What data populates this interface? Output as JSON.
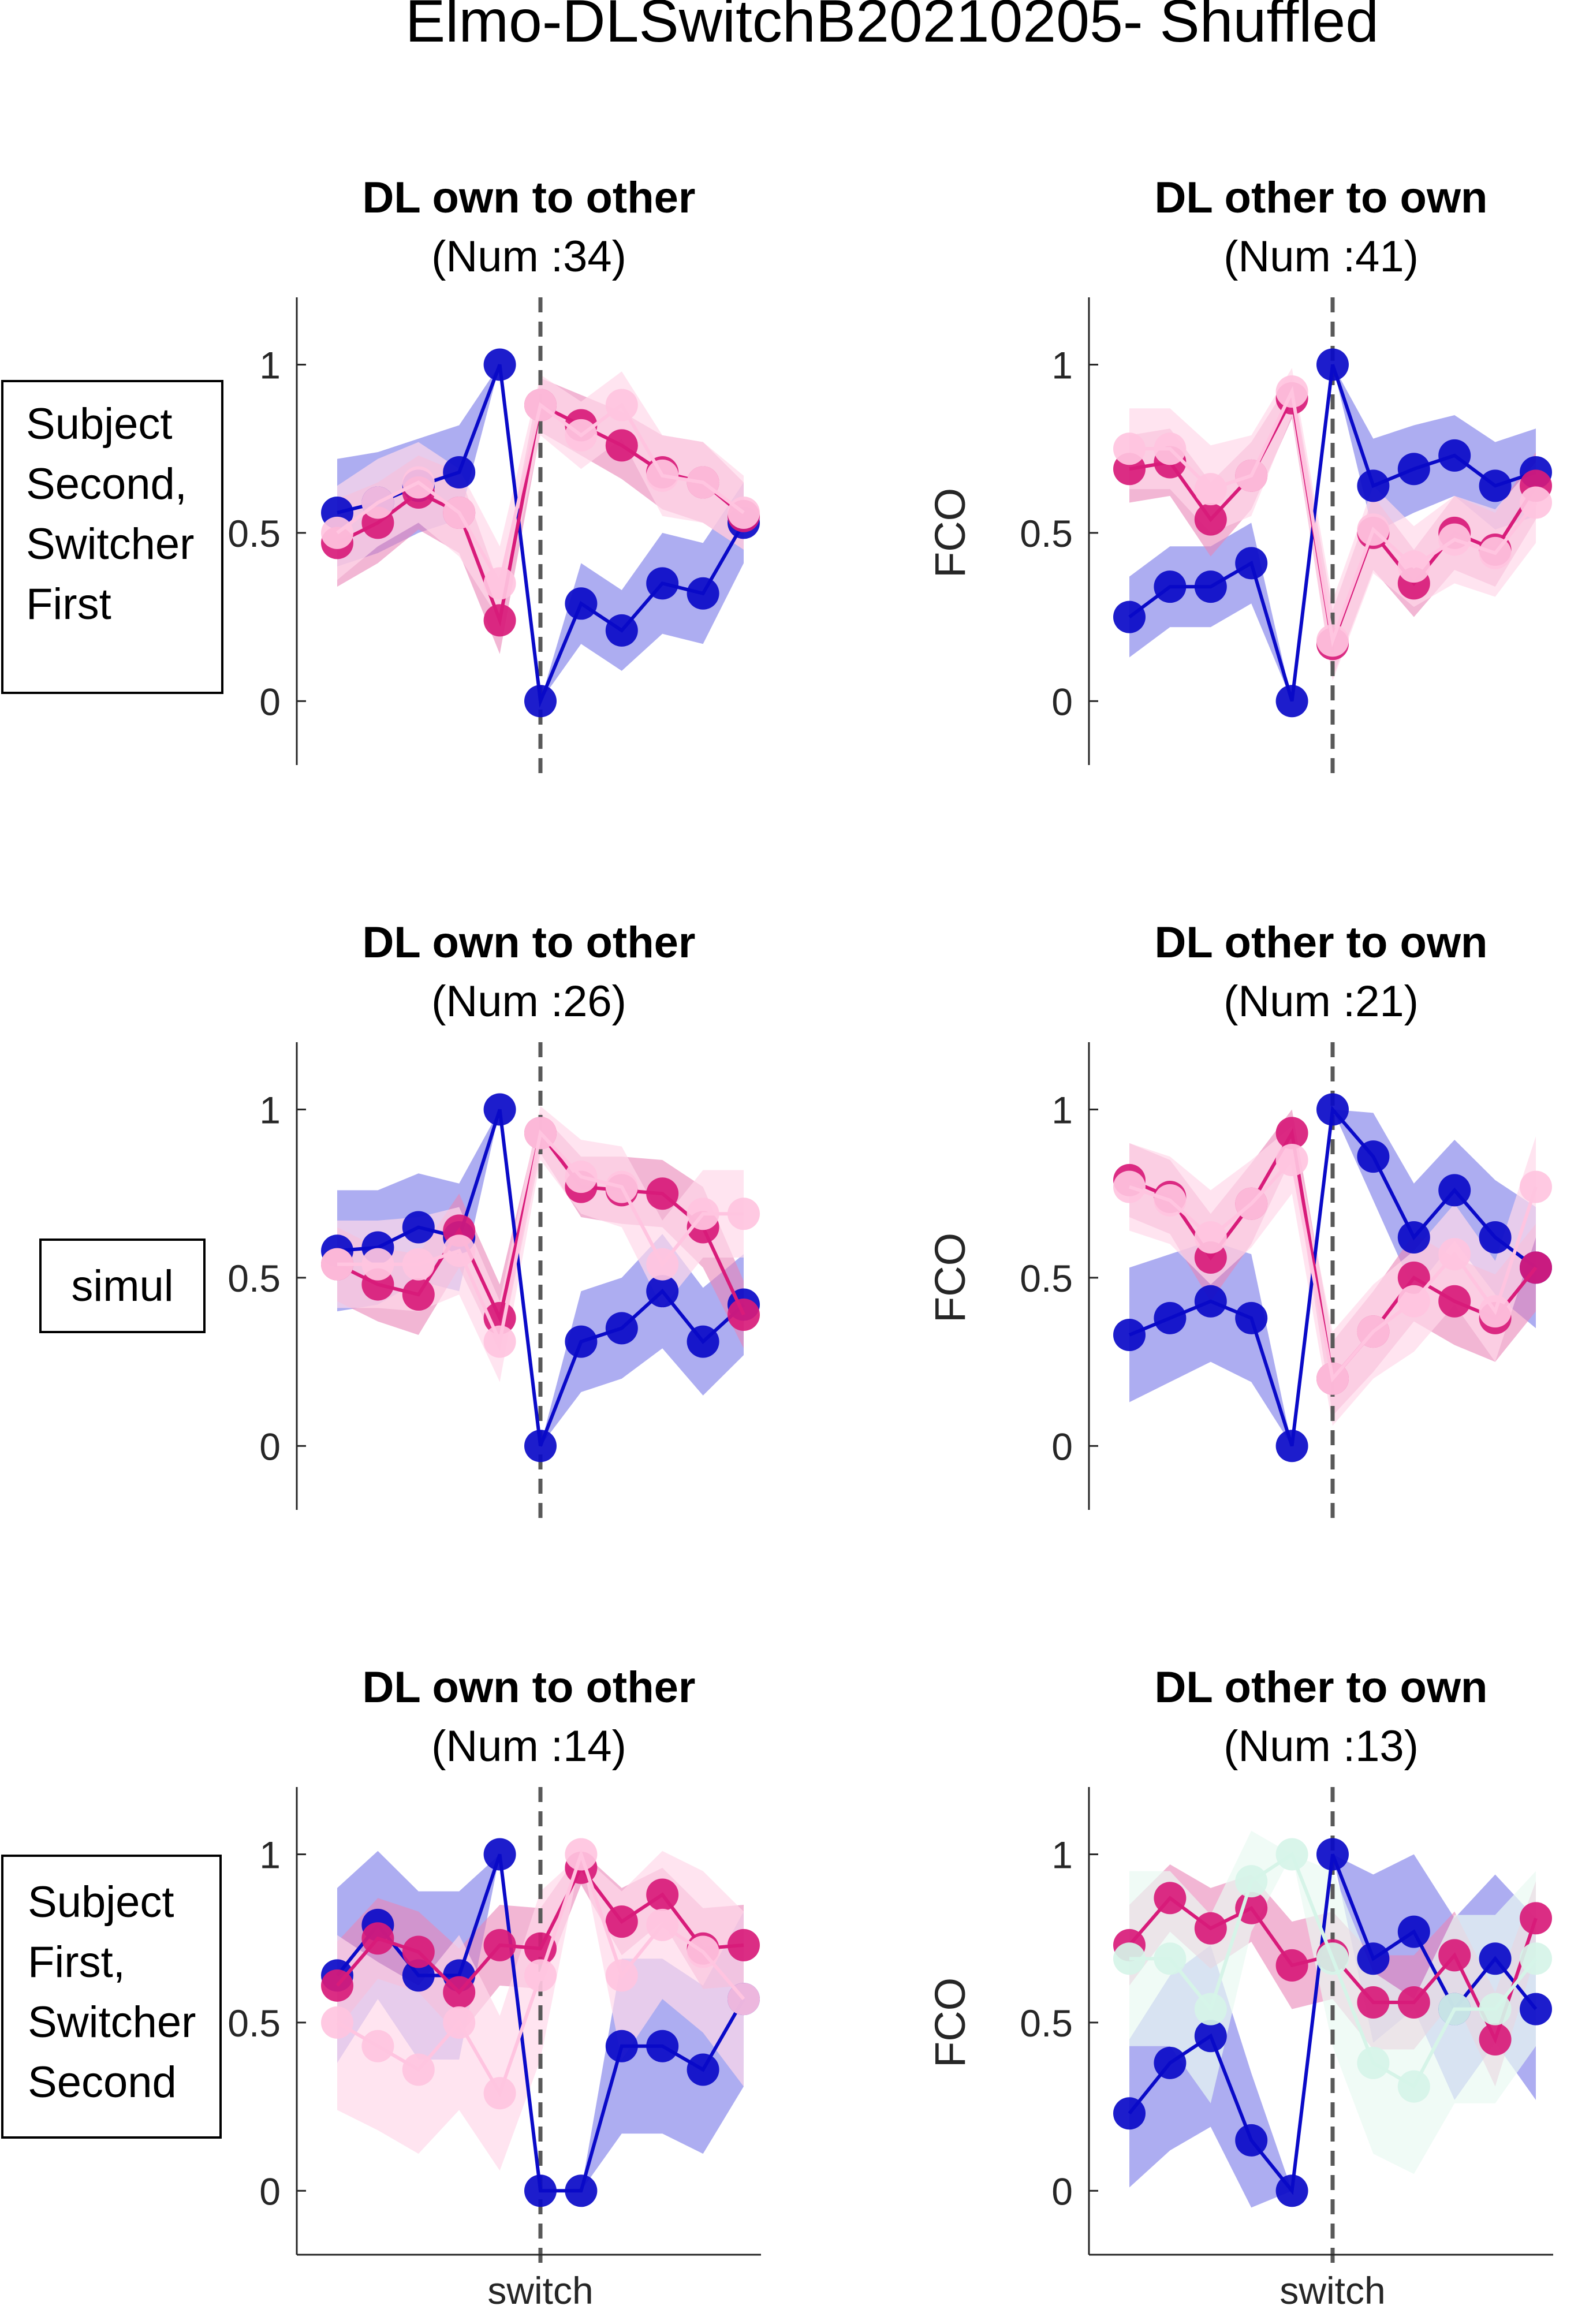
{
  "figure_title": "Elmo-DLSwitchB20210205- Shuffled",
  "row_labels": [
    [
      "Subject",
      "Second,",
      "Switcher",
      "First"
    ],
    [
      "simul"
    ],
    [
      "Subject",
      "First,",
      "Switcher",
      "Second"
    ]
  ],
  "colors": {
    "blue": "#0a0ac8",
    "blue_band": "#6a6ae6",
    "magenta": "#d81b7a",
    "magenta_band": "#ea86b8",
    "pink": "#ffc4e0",
    "pink_band": "#ffd9ea",
    "mint": "#d6f4e8",
    "mint_band": "#e9faf2",
    "axis": "#262626",
    "switch_line": "#595959"
  },
  "chart_data": [
    {
      "type": "line",
      "title": "DL own to other",
      "subtitle": "(Num :34)",
      "xlabel": "",
      "ylabel": "",
      "yticks": [
        "0",
        "0.5",
        "1"
      ],
      "ylim": [
        -0.19,
        1.2
      ],
      "x": [
        1,
        2,
        3,
        4,
        5,
        6,
        7,
        8,
        9,
        10,
        11
      ],
      "switch_x": 6,
      "grid": false,
      "series": [
        {
          "color": "blue",
          "values": [
            0.56,
            0.59,
            0.64,
            0.68,
            1.0,
            0.0,
            0.29,
            0.21,
            0.35,
            0.32,
            0.53
          ],
          "band": [
            0.16,
            0.15,
            0.14,
            0.14,
            0.0,
            0.0,
            0.12,
            0.12,
            0.15,
            0.15,
            0.12
          ]
        },
        {
          "color": "magenta",
          "values": [
            0.47,
            0.53,
            0.62,
            0.56,
            0.24,
            0.88,
            0.82,
            0.76,
            0.68,
            0.65,
            0.55
          ],
          "band": [
            0.13,
            0.12,
            0.11,
            0.12,
            0.1,
            0.08,
            0.09,
            0.1,
            0.11,
            0.12,
            0.1
          ]
        },
        {
          "color": "pink",
          "values": [
            0.5,
            0.59,
            0.65,
            0.56,
            0.35,
            0.88,
            0.79,
            0.88,
            0.67,
            0.65,
            0.56
          ],
          "band": [
            0.14,
            0.13,
            0.12,
            0.13,
            0.11,
            0.09,
            0.1,
            0.1,
            0.12,
            0.12,
            0.11
          ]
        }
      ]
    },
    {
      "type": "line",
      "title": "DL other to own",
      "subtitle": "(Num :41)",
      "xlabel": "",
      "ylabel": "FCO",
      "yticks": [
        "0",
        "0.5",
        "1"
      ],
      "ylim": [
        -0.19,
        1.2
      ],
      "x": [
        1,
        2,
        3,
        4,
        5,
        6,
        7,
        8,
        9,
        10,
        11
      ],
      "switch_x": 6,
      "grid": false,
      "series": [
        {
          "color": "blue",
          "values": [
            0.25,
            0.34,
            0.34,
            0.41,
            0.0,
            1.0,
            0.64,
            0.69,
            0.73,
            0.64,
            0.68
          ],
          "band": [
            0.12,
            0.12,
            0.12,
            0.12,
            0.0,
            0.0,
            0.14,
            0.13,
            0.12,
            0.13,
            0.13
          ]
        },
        {
          "color": "magenta",
          "values": [
            0.69,
            0.71,
            0.54,
            0.67,
            0.9,
            0.17,
            0.5,
            0.35,
            0.5,
            0.45,
            0.64
          ],
          "band": [
            0.1,
            0.1,
            0.11,
            0.1,
            0.06,
            0.1,
            0.11,
            0.1,
            0.11,
            0.11,
            0.1
          ]
        },
        {
          "color": "pink",
          "values": [
            0.75,
            0.75,
            0.63,
            0.67,
            0.92,
            0.18,
            0.51,
            0.4,
            0.48,
            0.44,
            0.59
          ],
          "band": [
            0.12,
            0.12,
            0.13,
            0.12,
            0.07,
            0.12,
            0.13,
            0.12,
            0.13,
            0.13,
            0.12
          ]
        }
      ]
    },
    {
      "type": "line",
      "title": "DL own to other",
      "subtitle": "(Num :26)",
      "xlabel": "",
      "ylabel": "",
      "yticks": [
        "0",
        "0.5",
        "1"
      ],
      "ylim": [
        -0.19,
        1.2
      ],
      "x": [
        1,
        2,
        3,
        4,
        5,
        6,
        7,
        8,
        9,
        10,
        11
      ],
      "switch_x": 6,
      "grid": false,
      "series": [
        {
          "color": "blue",
          "values": [
            0.58,
            0.59,
            0.65,
            0.62,
            1.0,
            0.0,
            0.31,
            0.35,
            0.46,
            0.31,
            0.42
          ],
          "band": [
            0.18,
            0.17,
            0.16,
            0.16,
            0.0,
            0.0,
            0.15,
            0.15,
            0.17,
            0.16,
            0.15
          ]
        },
        {
          "color": "magenta",
          "values": [
            0.54,
            0.48,
            0.45,
            0.64,
            0.38,
            0.93,
            0.77,
            0.76,
            0.75,
            0.65,
            0.39
          ],
          "band": [
            0.11,
            0.11,
            0.12,
            0.11,
            0.1,
            0.06,
            0.09,
            0.1,
            0.1,
            0.12,
            0.1
          ]
        },
        {
          "color": "pink",
          "values": [
            0.54,
            0.54,
            0.54,
            0.58,
            0.31,
            0.93,
            0.8,
            0.77,
            0.54,
            0.69,
            0.69
          ],
          "band": [
            0.13,
            0.13,
            0.14,
            0.13,
            0.12,
            0.08,
            0.11,
            0.12,
            0.13,
            0.13,
            0.13
          ]
        }
      ]
    },
    {
      "type": "line",
      "title": "DL other to own",
      "subtitle": "(Num :21)",
      "xlabel": "",
      "ylabel": "FCO",
      "yticks": [
        "0",
        "0.5",
        "1"
      ],
      "ylim": [
        -0.19,
        1.2
      ],
      "x": [
        1,
        2,
        3,
        4,
        5,
        6,
        7,
        8,
        9,
        10,
        11
      ],
      "switch_x": 6,
      "grid": false,
      "series": [
        {
          "color": "blue",
          "values": [
            0.33,
            0.38,
            0.43,
            0.38,
            0.0,
            1.0,
            0.86,
            0.62,
            0.76,
            0.62,
            0.53
          ],
          "band": [
            0.2,
            0.19,
            0.18,
            0.19,
            0.0,
            0.0,
            0.13,
            0.16,
            0.15,
            0.17,
            0.18
          ]
        },
        {
          "color": "magenta",
          "values": [
            0.79,
            0.74,
            0.56,
            0.72,
            0.93,
            0.2,
            0.34,
            0.5,
            0.43,
            0.38,
            0.53
          ],
          "band": [
            0.11,
            0.11,
            0.13,
            0.12,
            0.07,
            0.11,
            0.12,
            0.13,
            0.13,
            0.13,
            0.13
          ]
        },
        {
          "color": "pink",
          "values": [
            0.77,
            0.73,
            0.62,
            0.72,
            0.85,
            0.2,
            0.34,
            0.43,
            0.57,
            0.4,
            0.77
          ],
          "band": [
            0.13,
            0.13,
            0.14,
            0.13,
            0.1,
            0.14,
            0.14,
            0.15,
            0.15,
            0.15,
            0.15
          ]
        }
      ]
    },
    {
      "type": "line",
      "title": "DL own to other",
      "subtitle": "(Num :14)",
      "xlabel": "switch",
      "ylabel": "",
      "yticks": [
        "0",
        "0.5",
        "1"
      ],
      "ylim": [
        -0.19,
        1.2
      ],
      "x": [
        1,
        2,
        3,
        4,
        5,
        6,
        7,
        8,
        9,
        10,
        11
      ],
      "switch_x": 6,
      "grid": false,
      "series": [
        {
          "color": "blue",
          "values": [
            0.64,
            0.79,
            0.64,
            0.64,
            1.0,
            0.0,
            0.0,
            0.43,
            0.43,
            0.36,
            0.57
          ],
          "band": [
            0.26,
            0.22,
            0.25,
            0.25,
            0.0,
            0.0,
            0.0,
            0.26,
            0.26,
            0.25,
            0.26
          ]
        },
        {
          "color": "magenta",
          "values": [
            0.61,
            0.75,
            0.71,
            0.59,
            0.73,
            0.72,
            0.96,
            0.8,
            0.88,
            0.72,
            0.73
          ],
          "band": [
            0.13,
            0.12,
            0.12,
            0.13,
            0.12,
            0.12,
            0.05,
            0.1,
            0.08,
            0.12,
            0.12
          ]
        },
        {
          "color": "pink",
          "values": [
            0.5,
            0.43,
            0.36,
            0.5,
            0.29,
            0.64,
            1.0,
            0.64,
            0.79,
            0.71,
            0.57
          ],
          "band": [
            0.26,
            0.25,
            0.25,
            0.26,
            0.23,
            0.25,
            0.0,
            0.25,
            0.22,
            0.24,
            0.26
          ]
        }
      ]
    },
    {
      "type": "line",
      "title": "DL other to own",
      "subtitle": "(Num :13)",
      "xlabel": "switch",
      "ylabel": "FCO",
      "yticks": [
        "0",
        "0.5",
        "1"
      ],
      "ylim": [
        -0.19,
        1.2
      ],
      "x": [
        1,
        2,
        3,
        4,
        5,
        6,
        7,
        8,
        9,
        10,
        11
      ],
      "switch_x": 6,
      "grid": false,
      "series": [
        {
          "color": "blue",
          "values": [
            0.23,
            0.38,
            0.46,
            0.15,
            0.0,
            1.0,
            0.69,
            0.77,
            0.54,
            0.69,
            0.54
          ],
          "band": [
            0.22,
            0.26,
            0.27,
            0.2,
            0.0,
            0.0,
            0.25,
            0.23,
            0.27,
            0.25,
            0.27
          ]
        },
        {
          "color": "magenta",
          "values": [
            0.73,
            0.87,
            0.78,
            0.84,
            0.67,
            0.7,
            0.56,
            0.56,
            0.7,
            0.45,
            0.81
          ],
          "band": [
            0.12,
            0.1,
            0.12,
            0.1,
            0.13,
            0.13,
            0.14,
            0.14,
            0.13,
            0.14,
            0.11
          ]
        },
        {
          "color": "mint",
          "values": [
            0.69,
            0.69,
            0.54,
            0.92,
            1.0,
            0.69,
            0.38,
            0.31,
            0.54,
            0.54,
            0.69
          ],
          "band": [
            0.26,
            0.26,
            0.28,
            0.15,
            0.0,
            0.26,
            0.27,
            0.26,
            0.28,
            0.28,
            0.26
          ]
        }
      ]
    }
  ]
}
